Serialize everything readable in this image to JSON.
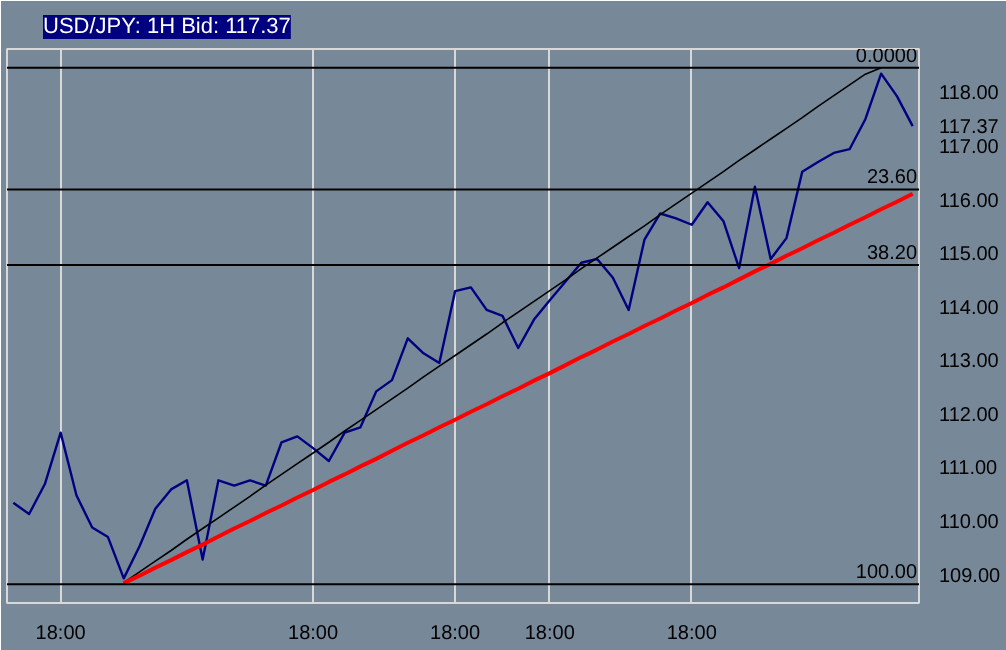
{
  "chart_data": {
    "type": "line",
    "title": "USD/JPY: 1H Bid: 117.37",
    "categories": [
      null,
      null,
      null,
      "18:00",
      null,
      null,
      null,
      null,
      null,
      null,
      null,
      null,
      null,
      null,
      null,
      null,
      null,
      null,
      null,
      "18:00",
      null,
      null,
      null,
      null,
      null,
      null,
      null,
      null,
      "18:00",
      null,
      null,
      null,
      null,
      null,
      "18:00",
      null,
      null,
      null,
      null,
      null,
      null,
      null,
      null,
      "18:00",
      null,
      null,
      null,
      null,
      null,
      null,
      null,
      null,
      null,
      null,
      null,
      null,
      null,
      null
    ],
    "ylim": [
      108.47,
      118.81
    ],
    "yticks": [
      {
        "value": 109,
        "label": "109.00"
      },
      {
        "value": 110,
        "label": "110.00"
      },
      {
        "value": 111,
        "label": "111.00"
      },
      {
        "value": 112,
        "label": "112.00"
      },
      {
        "value": 113,
        "label": "113.00"
      },
      {
        "value": 114,
        "label": "114.00"
      },
      {
        "value": 115,
        "label": "115.00"
      },
      {
        "value": 116,
        "label": "116.00"
      },
      {
        "value": 117,
        "label": "117.00"
      },
      {
        "value": 117.37,
        "label": "117.37"
      },
      {
        "value": 118,
        "label": "118.00"
      }
    ],
    "grid": "x",
    "line_style": "solid",
    "series": [
      {
        "color": "#000080",
        "values": [
          110.34,
          110.13,
          110.69,
          111.65,
          110.48,
          109.88,
          109.7,
          108.93,
          109.53,
          110.23,
          110.59,
          110.76,
          109.28,
          110.76,
          110.66,
          110.76,
          110.66,
          111.47,
          111.58,
          111.36,
          111.12,
          111.65,
          111.75,
          112.42,
          112.63,
          113.41,
          113.13,
          112.95,
          114.29,
          114.36,
          113.94,
          113.83,
          113.23,
          113.76,
          114.12,
          114.47,
          114.82,
          114.89,
          114.54,
          113.94,
          115.25,
          115.74,
          115.65,
          115.53,
          115.95,
          115.6,
          114.72,
          116.24,
          114.89,
          115.28,
          116.52,
          116.7,
          116.87,
          116.94,
          117.5,
          118.35,
          117.93,
          117.37
        ]
      },
      {
        "color": "#000000",
        "values": [
          null,
          null,
          null,
          null,
          null,
          null,
          null,
          108.85,
          109.05,
          109.25,
          109.45,
          109.66,
          109.86,
          110.06,
          110.26,
          110.46,
          110.67,
          110.87,
          111.07,
          111.27,
          111.47,
          111.68,
          111.88,
          112.08,
          112.28,
          112.48,
          112.69,
          112.89,
          113.09,
          113.29,
          113.49,
          113.7,
          113.9,
          114.1,
          114.3,
          114.5,
          114.71,
          114.91,
          115.11,
          115.31,
          115.51,
          115.72,
          115.92,
          116.12,
          116.32,
          116.52,
          116.73,
          116.93,
          117.13,
          117.33,
          117.53,
          117.74,
          117.94,
          118.14,
          118.34,
          118.46,
          null,
          null
        ]
      },
      {
        "color": "#ff0000",
        "values": [
          null,
          null,
          null,
          null,
          null,
          null,
          null,
          108.84,
          108.98,
          109.13,
          109.27,
          109.42,
          109.56,
          109.71,
          109.86,
          110.0,
          110.15,
          110.29,
          110.44,
          110.58,
          110.73,
          110.87,
          111.02,
          111.16,
          111.31,
          111.46,
          111.6,
          111.75,
          111.89,
          112.04,
          112.18,
          112.33,
          112.47,
          112.62,
          112.76,
          112.91,
          113.06,
          113.2,
          113.35,
          113.49,
          113.64,
          113.78,
          113.93,
          114.07,
          114.22,
          114.36,
          114.51,
          114.66,
          114.8,
          114.95,
          115.09,
          115.24,
          115.38,
          115.53,
          115.67,
          115.82,
          115.96,
          116.11
        ]
      }
    ],
    "ref_lines": [
      {
        "axis": "y",
        "value": 118.46,
        "color": "#000000"
      },
      {
        "axis": "y",
        "value": 116.19,
        "color": "#000000"
      },
      {
        "axis": "y",
        "value": 114.78,
        "color": "#000000"
      },
      {
        "axis": "y",
        "value": 108.82,
        "color": "#000000"
      }
    ],
    "annotations": [
      {
        "text": "0.0000",
        "y": 118.46
      },
      {
        "text": "23.60",
        "y": 116.19
      },
      {
        "text": "38.20",
        "y": 114.78
      },
      {
        "text": "100.00",
        "y": 108.82
      }
    ]
  }
}
